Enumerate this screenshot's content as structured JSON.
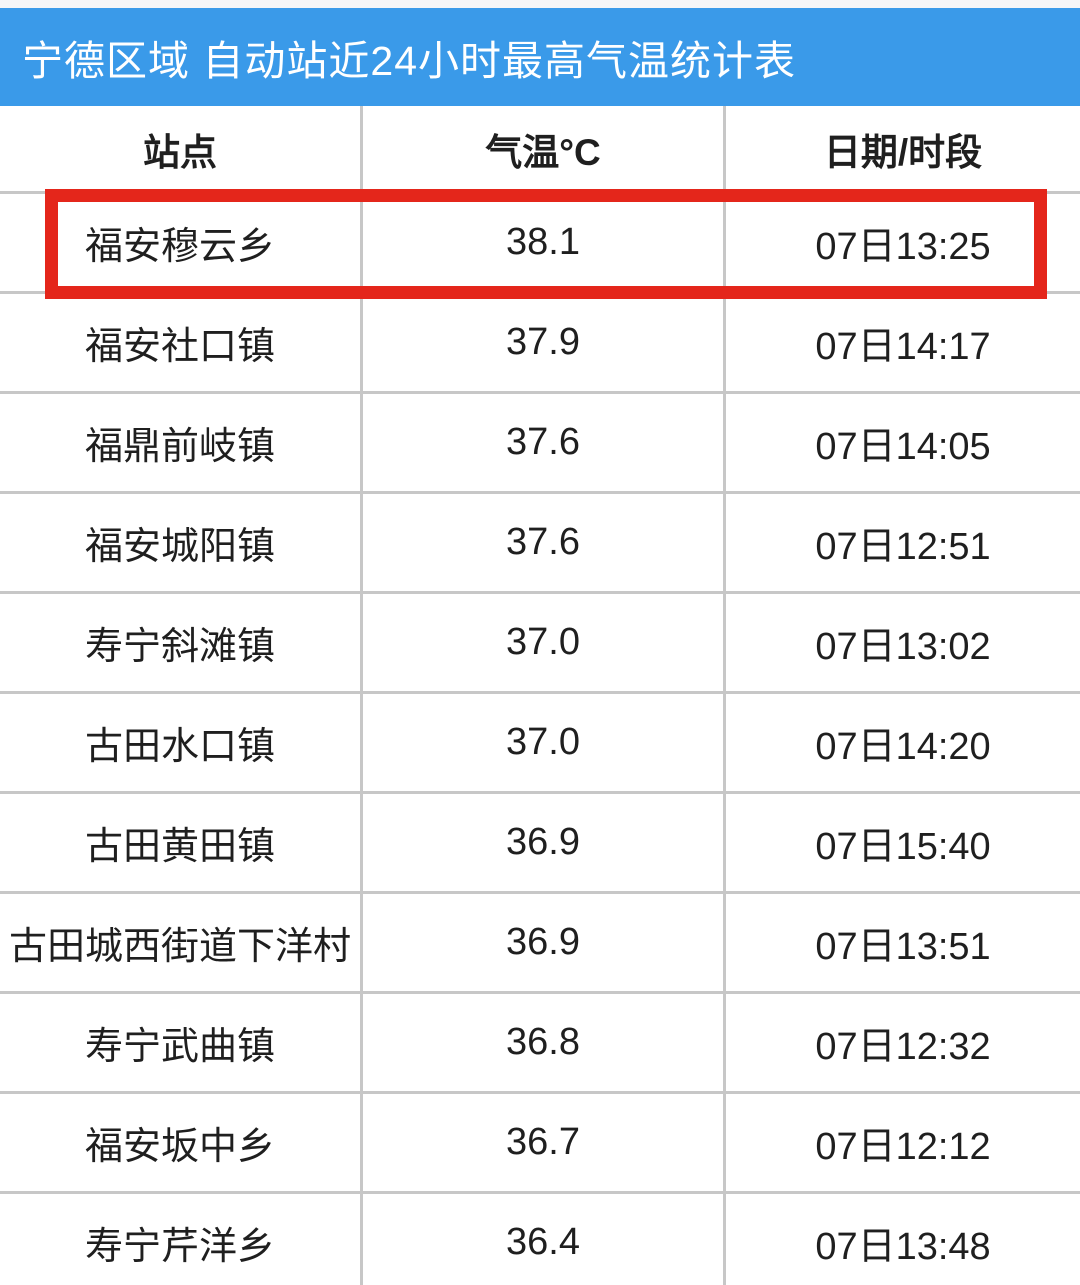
{
  "page": {
    "title": "宁德区域 自动站近24小时最高气温统计表"
  },
  "chart_data": {
    "type": "table",
    "title": "宁德区域 自动站近24小时最高气温统计表",
    "columns": [
      "站点",
      "气温°C",
      "日期/时段"
    ],
    "rows": [
      [
        "福安穆云乡",
        38.1,
        "07日13:25"
      ],
      [
        "福安社口镇",
        37.9,
        "07日14:17"
      ],
      [
        "福鼎前岐镇",
        37.6,
        "07日14:05"
      ],
      [
        "福安城阳镇",
        37.6,
        "07日12:51"
      ],
      [
        "寿宁斜滩镇",
        37.0,
        "07日13:02"
      ],
      [
        "古田水口镇",
        37.0,
        "07日14:20"
      ],
      [
        "古田黄田镇",
        36.9,
        "07日15:40"
      ],
      [
        "古田城西街道下洋村",
        36.9,
        "07日13:51"
      ],
      [
        "寿宁武曲镇",
        36.8,
        "07日12:32"
      ],
      [
        "福安坂中乡",
        36.7,
        "07日12:12"
      ],
      [
        "寿宁芹洋乡",
        36.4,
        "07日13:48"
      ]
    ],
    "highlighted_row_index": 0,
    "highlighted_row": {
      "station": "福安穆云乡",
      "temperature": 38.1,
      "time": "07日13:25"
    }
  },
  "colors": {
    "title_bar": "#3a9ae9",
    "title_text": "#ffffff",
    "highlight_border": "#e4261b",
    "grid_line": "#c7c7c7",
    "text": "#1f1f1f",
    "background": "#ffffff",
    "top_strip": "#f5f6f8"
  }
}
